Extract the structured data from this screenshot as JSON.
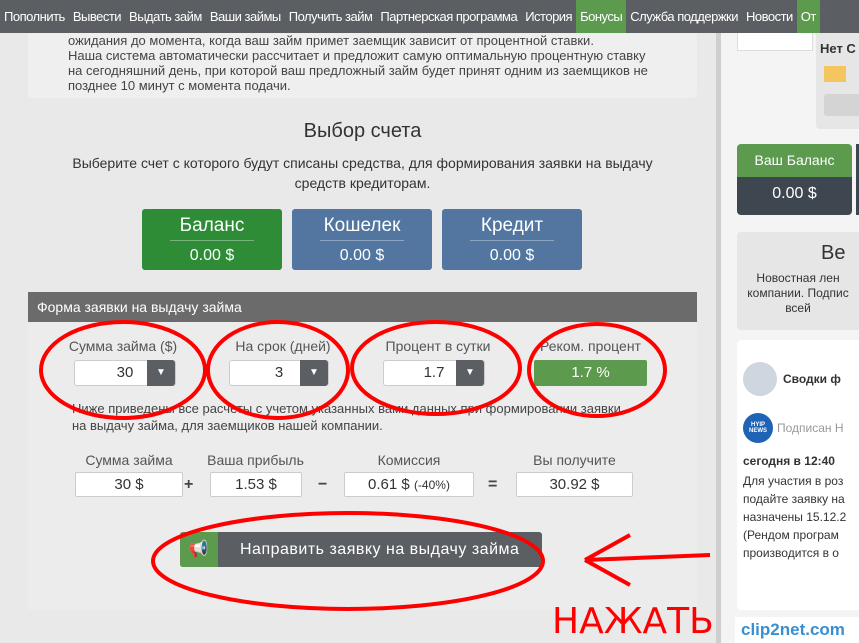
{
  "nav": {
    "items": [
      "Пополнить",
      "Вывести",
      "Выдать займ",
      "Ваши займы",
      "Получить займ",
      "Партнерская программа",
      "История",
      "Бонусы",
      "Служба поддержки",
      "Новости",
      "От"
    ],
    "active": "Бонусы"
  },
  "info": {
    "line1": "ожидания до момента, когда ваш займ примет заемщик зависит от процентной ставки.",
    "line2": "Наша система автоматически рассчитает и предложит самую оптимальную процентную ставку на сегодняшний день, при которой ваш предложный займ будет принят одним из заемщиков не позднее 10 минут с момента подачи."
  },
  "account": {
    "title": "Выбор счета",
    "subtitle": "Выберите счет с которого будут списаны средства, для формирования заявки на выдачу средств кредиторам.",
    "options": [
      {
        "label": "Баланс",
        "value": "0.00 $",
        "color": "#2e8b36"
      },
      {
        "label": "Кошелек",
        "value": "0.00 $",
        "color": "#5276a0"
      },
      {
        "label": "Кредит",
        "value": "0.00 $",
        "color": "#5276a0"
      }
    ]
  },
  "form": {
    "header": "Форма заявки на выдачу займа",
    "amount": {
      "label": "Сумма займа ($)",
      "value": "30"
    },
    "term": {
      "label": "На срок (дней)",
      "value": "3"
    },
    "rate": {
      "label": "Процент в сутки",
      "value": "1.7"
    },
    "recommended": {
      "label": "Реком. процент",
      "value": "1.7 %"
    },
    "note": "Ниже приведены все расчеты с учетом указанных вами данных при формировании заявки на выдачу займа, для заемщиков нашей компании.",
    "calc": {
      "amount_label": "Сумма займа",
      "amount": "30 $",
      "profit_label": "Ваша прибыль",
      "profit": "1.53 $",
      "fee_label": "Комиссия",
      "fee": "0.61 $",
      "fee_pct": "(-40%)",
      "total_label": "Вы получите",
      "total": "30.92 $",
      "plus": "+",
      "minus": "−",
      "equals": "="
    },
    "submit": "Направить заявку на выдачу займа"
  },
  "sidebar": {
    "no_label": "Нет С",
    "balance_label": "Ваш Баланс",
    "balance": "0.00 $",
    "news_title": "Ве",
    "news_text": "Новостная лен компании. Подпис всей",
    "widget_title": "Сводки ф",
    "widget_sub": "Подписан Н",
    "widget_logo": "HYIP NEWS",
    "widget_time": "сегодня в 12:40",
    "widget_text": "Для участия в роз подайте заявку на назначены 15.12.2 (Рендом програм производится в о"
  },
  "annotation": {
    "text": "НАЖАТЬ",
    "color": "#ff0000"
  },
  "watermark": "clip2net.com"
}
